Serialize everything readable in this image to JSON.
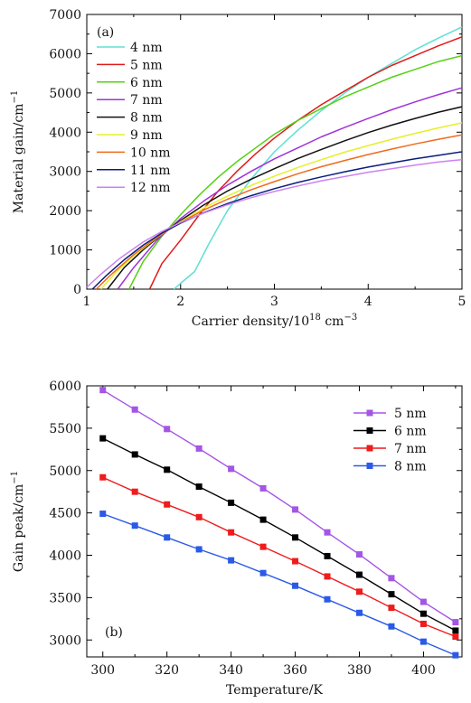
{
  "chart_data": [
    {
      "type": "line",
      "panel_label": "(a)",
      "xlabel": "Carrier density/10",
      "xlabel_sup": "18",
      "xlabel_unit": " cm",
      "xlabel_unit_sup": "−3",
      "ylabel": "Material gain/cm",
      "ylabel_sup": "−1",
      "xlim": [
        1,
        5
      ],
      "ylim": [
        0,
        7000
      ],
      "xticks": [
        "1",
        "2",
        "3",
        "4",
        "5"
      ],
      "yticks": [
        "0",
        "1000",
        "2000",
        "3000",
        "4000",
        "5000",
        "6000",
        "7000"
      ],
      "legend_position": "top-left",
      "grid": false,
      "series": [
        {
          "name": "4 nm",
          "color": "#5ee0d3",
          "x": [
            1.93,
            2.0,
            2.15,
            2.3,
            2.5,
            2.75,
            3.0,
            3.25,
            3.5,
            3.75,
            4.0,
            4.25,
            4.5,
            4.75,
            5.0
          ],
          "y": [
            0,
            150,
            450,
            1150,
            2000,
            2800,
            3500,
            4050,
            4550,
            5000,
            5400,
            5750,
            6100,
            6400,
            6680
          ]
        },
        {
          "name": "5 nm",
          "color": "#e11a1a",
          "x": [
            1.67,
            1.8,
            2.0,
            2.2,
            2.4,
            2.6,
            2.8,
            3.0,
            3.25,
            3.5,
            3.75,
            4.0,
            4.25,
            4.5,
            4.75,
            5.0
          ],
          "y": [
            0,
            650,
            1250,
            1900,
            2500,
            3000,
            3450,
            3850,
            4300,
            4700,
            5050,
            5400,
            5700,
            5950,
            6200,
            6430
          ]
        },
        {
          "name": "6 nm",
          "color": "#55d115",
          "x": [
            1.45,
            1.6,
            1.8,
            2.0,
            2.2,
            2.4,
            2.6,
            2.8,
            3.0,
            3.25,
            3.5,
            3.75,
            4.0,
            4.25,
            4.5,
            4.75,
            5.0
          ],
          "y": [
            0,
            700,
            1350,
            1900,
            2400,
            2850,
            3250,
            3600,
            3950,
            4300,
            4600,
            4900,
            5150,
            5400,
            5600,
            5800,
            5950
          ]
        },
        {
          "name": "7 nm",
          "color": "#a033d8",
          "x": [
            1.33,
            1.5,
            1.75,
            2.0,
            2.25,
            2.5,
            2.75,
            3.0,
            3.25,
            3.5,
            3.75,
            4.0,
            4.25,
            4.5,
            4.75,
            5.0
          ],
          "y": [
            0,
            550,
            1250,
            1800,
            2250,
            2650,
            3000,
            3320,
            3600,
            3880,
            4120,
            4350,
            4570,
            4770,
            4960,
            5130
          ]
        },
        {
          "name": "8 nm",
          "color": "#111111",
          "x": [
            1.22,
            1.4,
            1.6,
            1.8,
            2.0,
            2.25,
            2.5,
            2.75,
            3.0,
            3.25,
            3.5,
            3.75,
            4.0,
            4.25,
            4.5,
            4.75,
            5.0
          ],
          "y": [
            0,
            550,
            1000,
            1400,
            1750,
            2150,
            2500,
            2800,
            3070,
            3330,
            3560,
            3780,
            3990,
            4180,
            4350,
            4510,
            4650
          ]
        },
        {
          "name": "9 nm",
          "color": "#e6ef2a",
          "x": [
            1.15,
            1.3,
            1.5,
            1.75,
            2.0,
            2.25,
            2.5,
            2.75,
            3.0,
            3.25,
            3.5,
            3.75,
            4.0,
            4.25,
            4.5,
            4.75,
            5.0
          ],
          "y": [
            0,
            400,
            850,
            1320,
            1720,
            2070,
            2370,
            2640,
            2880,
            3100,
            3300,
            3490,
            3660,
            3820,
            3970,
            4110,
            4240
          ]
        },
        {
          "name": "10 nm",
          "color": "#f06a1c",
          "x": [
            1.1,
            1.25,
            1.5,
            1.75,
            2.0,
            2.25,
            2.5,
            2.75,
            3.0,
            3.25,
            3.5,
            3.75,
            4.0,
            4.25,
            4.5,
            4.75,
            5.0
          ],
          "y": [
            0,
            350,
            880,
            1330,
            1700,
            2020,
            2290,
            2530,
            2740,
            2940,
            3120,
            3280,
            3430,
            3570,
            3700,
            3820,
            3930
          ]
        },
        {
          "name": "11 nm",
          "color": "#0a1e7a",
          "x": [
            1.06,
            1.2,
            1.4,
            1.6,
            1.8,
            2.0,
            2.25,
            2.5,
            2.75,
            3.0,
            3.25,
            3.5,
            3.75,
            4.0,
            4.25,
            4.5,
            4.75,
            5.0
          ],
          "y": [
            0,
            330,
            750,
            1120,
            1430,
            1680,
            1950,
            2180,
            2380,
            2560,
            2720,
            2860,
            2990,
            3110,
            3220,
            3320,
            3410,
            3500
          ]
        },
        {
          "name": "12 nm",
          "color": "#cc82f0",
          "x": [
            1.0,
            1.15,
            1.35,
            1.6,
            1.8,
            2.0,
            2.25,
            2.5,
            2.75,
            3.0,
            3.25,
            3.5,
            3.75,
            4.0,
            4.25,
            4.5,
            4.75,
            5.0
          ],
          "y": [
            50,
            380,
            780,
            1200,
            1470,
            1700,
            1940,
            2150,
            2330,
            2490,
            2630,
            2760,
            2870,
            2980,
            3070,
            3160,
            3240,
            3300
          ]
        }
      ]
    },
    {
      "type": "line",
      "panel_label": "(b)",
      "xlabel": "Temperature/K",
      "ylabel": "Gain peak/cm",
      "ylabel_sup": "−1",
      "xlim": [
        295,
        412
      ],
      "ylim": [
        2800,
        6000
      ],
      "xticks": [
        "300",
        "320",
        "340",
        "360",
        "380",
        "400"
      ],
      "yticks": [
        "3000",
        "3500",
        "4000",
        "4500",
        "5000",
        "5500",
        "6000"
      ],
      "legend_position": "top-right",
      "grid": false,
      "markers": "square",
      "x": [
        300,
        310,
        320,
        330,
        340,
        350,
        360,
        370,
        380,
        390,
        400,
        410
      ],
      "series": [
        {
          "name": "5 nm",
          "color": "#a455e6",
          "values": [
            5950,
            5720,
            5490,
            5260,
            5020,
            4790,
            4540,
            4270,
            4010,
            3730,
            3450,
            3210
          ]
        },
        {
          "name": "6 nm",
          "color": "#000000",
          "values": [
            5380,
            5190,
            5010,
            4810,
            4620,
            4420,
            4210,
            3990,
            3770,
            3540,
            3310,
            3110
          ]
        },
        {
          "name": "7 nm",
          "color": "#ee1c1c",
          "values": [
            4920,
            4750,
            4600,
            4450,
            4270,
            4100,
            3930,
            3750,
            3570,
            3380,
            3190,
            3040
          ]
        },
        {
          "name": "8 nm",
          "color": "#2a5ae8",
          "values": [
            4490,
            4350,
            4210,
            4070,
            3940,
            3790,
            3640,
            3480,
            3320,
            3160,
            2980,
            2820
          ]
        }
      ]
    }
  ]
}
